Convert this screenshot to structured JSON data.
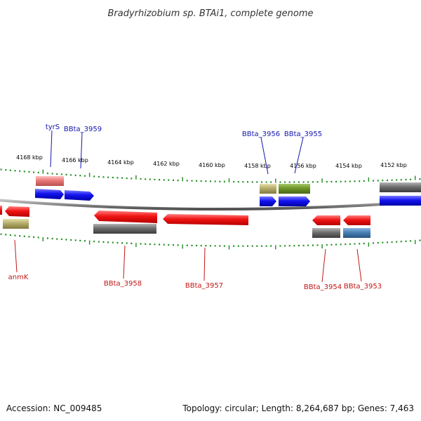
{
  "title": "Bradyrhizobium sp. BTAi1, complete genome",
  "footer": {
    "accession": "Accession: NC_009485",
    "summary": "Topology: circular; Length: 8,264,687 bp; Genes: 7,463"
  },
  "colors": {
    "backbone": "#8a8a8a",
    "tick": "#1e8c1e",
    "red": "#f01414",
    "blue": "#1414f0",
    "gray": "#6e6e6e",
    "pink": "#e87878",
    "khaki": "#b4ac6a",
    "olive": "#6e9628",
    "steel": "#4680b4",
    "label_blue": "#1515b0",
    "label_red": "#c01818"
  },
  "ticks": [
    {
      "label": "4168 kbp",
      "kbp": 4168
    },
    {
      "label": "4166 kbp",
      "kbp": 4166
    },
    {
      "label": "4164 kbp",
      "kbp": 4164
    },
    {
      "label": "4162 kbp",
      "kbp": 4162
    },
    {
      "label": "4160 kbp",
      "kbp": 4160
    },
    {
      "label": "4158 kbp",
      "kbp": 4158
    },
    {
      "label": "4156 kbp",
      "kbp": 4156
    },
    {
      "label": "4154 kbp",
      "kbp": 4154
    },
    {
      "label": "4152 kbp",
      "kbp": 4152
    }
  ],
  "labels": [
    {
      "text": "tyrS",
      "color": "blue"
    },
    {
      "text": "BBta_3959",
      "color": "blue"
    },
    {
      "text": "BBta_3956",
      "color": "blue"
    },
    {
      "text": "BBta_3955",
      "color": "blue"
    },
    {
      "text": "anmK",
      "color": "red"
    },
    {
      "text": "BBta_3958",
      "color": "red"
    },
    {
      "text": "BBta_3957",
      "color": "red"
    },
    {
      "text": "BBta_3954",
      "color": "red"
    },
    {
      "text": "BBta_3953",
      "color": "red"
    }
  ]
}
